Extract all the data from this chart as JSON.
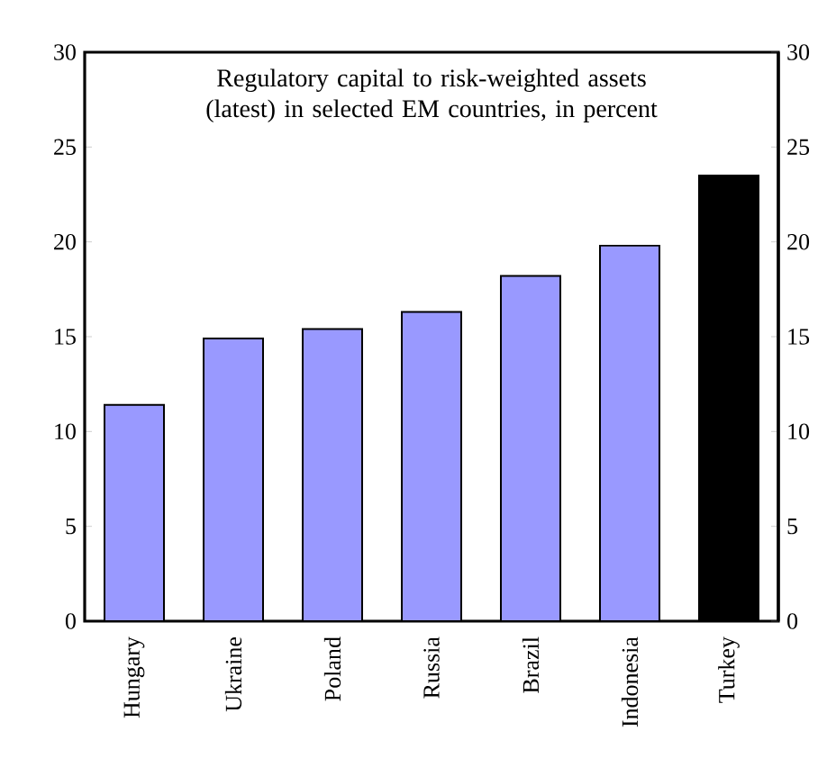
{
  "chart_data": {
    "type": "bar",
    "title": "Regulatory capital to risk-weighted assets (latest) in selected EM countries, in percent",
    "categories": [
      "Hungary",
      "Ukraine",
      "Poland",
      "Russia",
      "Brazil",
      "Indonesia",
      "Turkey"
    ],
    "values": [
      11.4,
      14.9,
      15.4,
      16.3,
      18.2,
      19.8,
      23.5
    ],
    "colors": [
      "#9999ff",
      "#9999ff",
      "#9999ff",
      "#9999ff",
      "#9999ff",
      "#9999ff",
      "#000000"
    ],
    "ylim": [
      0,
      30
    ],
    "yticks": [
      0,
      5,
      10,
      15,
      20,
      25,
      30
    ],
    "y2lim": [
      0,
      30
    ],
    "y2ticks": [
      0,
      5,
      10,
      15,
      20,
      25,
      30
    ]
  }
}
